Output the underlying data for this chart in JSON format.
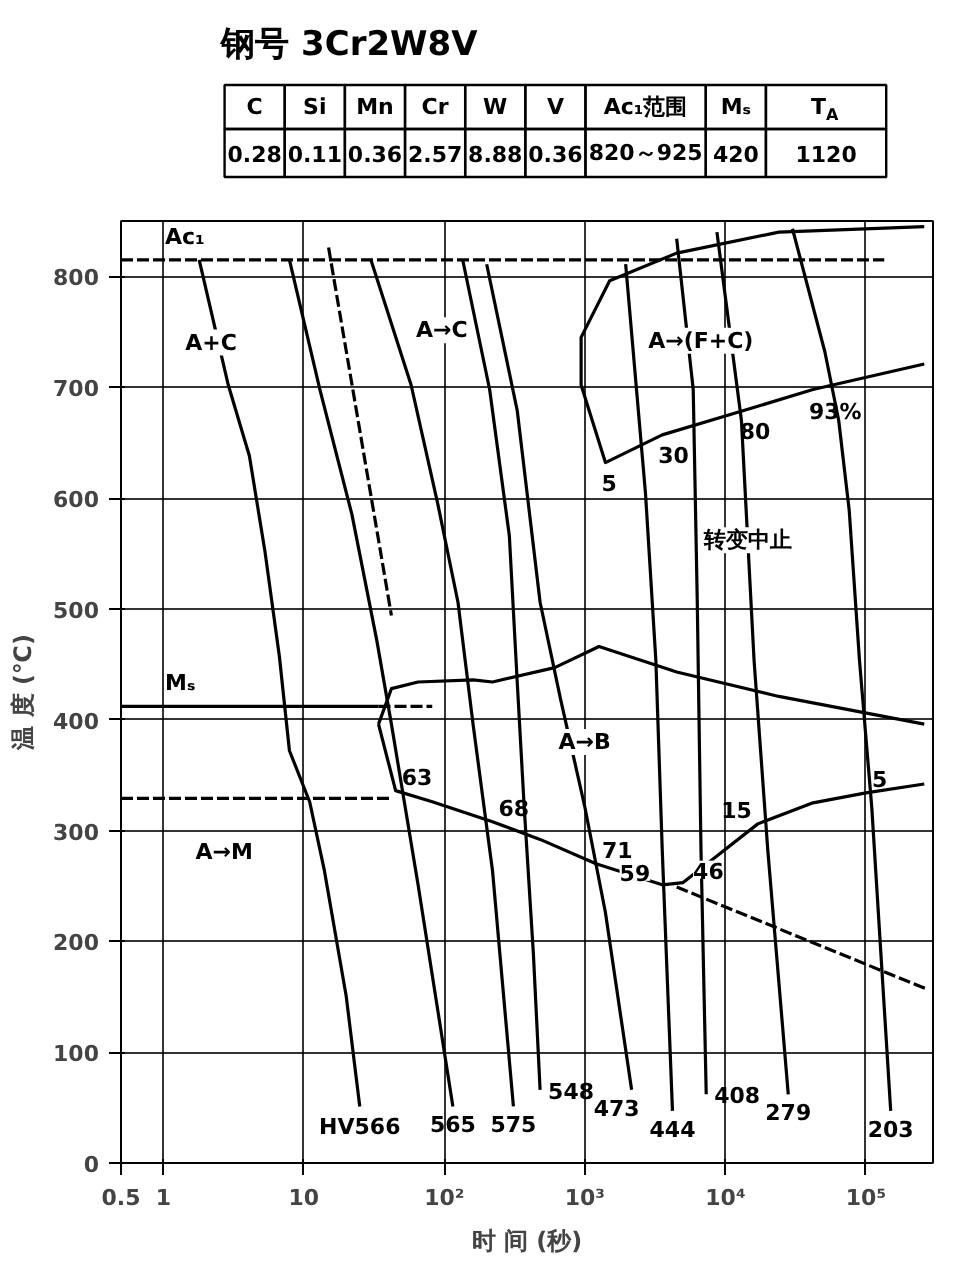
{
  "chart_data": [
    {
      "type": "other",
      "title": "钢号  3Cr2W8V",
      "categories": [
        "C",
        "Si",
        "Mn",
        "Cr",
        "W",
        "V",
        "Ac₁范围",
        "Mₛ",
        "T$_{A}$"
      ],
      "annotations": [
        "0.28",
        "0.11",
        "0.36",
        "2.57",
        "8.88",
        "0.36",
        "820～925",
        "420",
        "1120"
      ]
    },
    {
      "type": "line",
      "xlabel": "时 间 (秒)",
      "ylabel": "温 度 (℃)",
      "log": "x",
      "grid": true,
      "marker": "none",
      "xlim": [
        0.5,
        300000
      ],
      "ylim": [
        0,
        850
      ],
      "xticks": [
        0.5,
        1,
        10,
        {
          "value": 100,
          "label": "10²"
        },
        {
          "value": 1000,
          "label": "10³"
        },
        {
          "value": 10000,
          "label": "10⁴"
        },
        {
          "value": 100000,
          "label": "10⁵"
        }
      ],
      "yticks": [
        0,
        100,
        200,
        300,
        400,
        500,
        600,
        700,
        800
      ],
      "series": [
        {
          "color": "#000000",
          "line_style": "dashed",
          "x": [
            0.5,
            135000
          ],
          "values": [
            815,
            815
          ]
        },
        {
          "color": "#000000",
          "line_style": "solid",
          "x": [
            0.5,
            34
          ],
          "values": [
            412,
            412
          ]
        },
        {
          "color": "#000000",
          "line_style": "dashed",
          "x": [
            34,
            82
          ],
          "values": [
            412,
            412
          ]
        },
        {
          "color": "#000000",
          "line_style": "dashed",
          "x": [
            0.5,
            42
          ],
          "values": [
            329,
            329
          ]
        },
        {
          "color": "#000000",
          "line_style": "solid",
          "x": [
            34,
            42,
            65,
            160,
            220,
            610,
            1260,
            4500,
            24000,
            260000
          ],
          "values": [
            396,
            428,
            434,
            436,
            434,
            447,
            466,
            443,
            421,
            396
          ]
        },
        {
          "color": "#000000",
          "line_style": "solid",
          "x": [
            34,
            45,
            82,
            220,
            480,
            1200,
            3550,
            5000,
            8700,
            17000,
            42000,
            100000,
            260000
          ],
          "values": [
            396,
            336,
            326,
            308,
            292,
            270,
            251,
            253,
            277,
            306,
            325,
            334,
            342
          ]
        },
        {
          "color": "#000000",
          "line_style": "dashed",
          "x": [
            4500,
            270000
          ],
          "values": [
            249,
            157
          ]
        },
        {
          "color": "#000000",
          "line_style": "solid",
          "x": [
            260000,
            24000,
            4500,
            1500,
            940,
            940,
            1400,
            3550,
            13500,
            42000,
            260000
          ],
          "values": [
            845,
            840,
            821,
            796,
            745,
            702,
            632,
            657,
            679,
            698,
            721
          ]
        },
        {
          "color": "#000000",
          "line_style": "dashed",
          "x": [
            15,
            42
          ],
          "values": [
            826,
            494
          ]
        },
        {
          "color": "#000000",
          "line_style": "solid",
          "x": [
            1.8,
            2.9,
            4.1,
            5.3,
            6.7,
            7.9,
            11,
            14,
            20,
            25
          ],
          "values": [
            815,
            702,
            638,
            551,
            457,
            372,
            326,
            264,
            151,
            51
          ]
        },
        {
          "color": "#000000",
          "line_style": "solid",
          "x": [
            7.9,
            13,
            22,
            33,
            42,
            65,
            115
          ],
          "values": [
            815,
            698,
            585,
            472,
            396,
            251,
            51
          ]
        },
        {
          "color": "#000000",
          "line_style": "solid",
          "x": [
            30,
            58,
            90,
            125,
            160,
            220,
            310
          ],
          "values": [
            815,
            702,
            594,
            506,
            396,
            264,
            51
          ]
        },
        {
          "color": "#000000",
          "line_style": "solid",
          "x": [
            135,
            210,
            290,
            330,
            370,
            430,
            480
          ],
          "values": [
            815,
            698,
            566,
            434,
            321,
            189,
            66
          ]
        },
        {
          "color": "#000000",
          "line_style": "solid",
          "x": [
            200,
            330,
            480,
            670,
            1000,
            1400,
            2150
          ],
          "values": [
            811,
            679,
            506,
            419,
            321,
            226,
            66
          ]
        },
        {
          "color": "#000000",
          "line_style": "solid",
          "x": [
            1950,
            2700,
            3200,
            3550,
            4200
          ],
          "values": [
            811,
            604,
            453,
            283,
            47
          ]
        },
        {
          "color": "#000000",
          "line_style": "solid",
          "x": [
            4500,
            5900,
            6300,
            6700,
            7300
          ],
          "values": [
            834,
            698,
            509,
            283,
            62
          ]
        },
        {
          "color": "#000000",
          "line_style": "solid",
          "x": [
            8700,
            13000,
            16000,
            20000,
            28000
          ],
          "values": [
            840,
            670,
            453,
            283,
            62
          ]
        },
        {
          "color": "#000000",
          "line_style": "solid",
          "x": [
            30000,
            51000,
            64000,
            76000,
            90000,
            110000,
            150000
          ],
          "values": [
            843,
            732,
            670,
            589,
            453,
            321,
            47
          ]
        }
      ],
      "annotations": [
        {
          "text": "HV566",
          "x": 25,
          "y": 51
        },
        {
          "text": "565",
          "x": 115,
          "y": 51
        },
        {
          "text": "575",
          "x": 310,
          "y": 51
        },
        {
          "text": "548",
          "x": 480,
          "y": 66
        },
        {
          "text": "473",
          "x": 2150,
          "y": 66
        },
        {
          "text": "444",
          "x": 4200,
          "y": 47
        },
        {
          "text": "408",
          "x": 7300,
          "y": 62
        },
        {
          "text": "279",
          "x": 28000,
          "y": 62
        },
        {
          "text": "203",
          "x": 150000,
          "y": 47
        },
        {
          "text": "5",
          "x": 1400,
          "y": 632
        },
        {
          "text": "30",
          "x": 3550,
          "y": 657
        },
        {
          "text": "80",
          "x": 13500,
          "y": 679
        },
        {
          "text": "93%",
          "x": 42000,
          "y": 698
        },
        {
          "text": "63",
          "x": 45,
          "y": 336
        },
        {
          "text": "68",
          "x": 220,
          "y": 308
        },
        {
          "text": "71",
          "x": 1200,
          "y": 270
        },
        {
          "text": "59",
          "x": 3550,
          "y": 251
        },
        {
          "text": "46",
          "x": 5000,
          "y": 253
        },
        {
          "text": "15",
          "x": 17000,
          "y": 306
        },
        {
          "text": "5",
          "x": 100000,
          "y": 334
        },
        "A+C",
        "A→C",
        "A→(F+C)",
        "转变中止",
        "A→B",
        "A→M",
        {
          "text": "Mₛ",
          "x": 0.5,
          "y": 412
        },
        {
          "text": "Ac₁",
          "x": 0.5,
          "y": 815
        }
      ]
    }
  ]
}
